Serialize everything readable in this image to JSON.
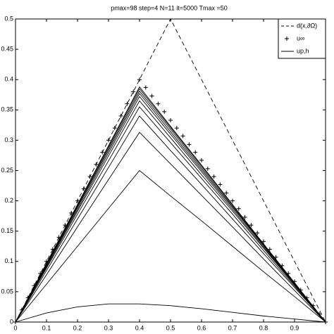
{
  "chart_data": {
    "type": "line",
    "title": "pmax=98 step=4  N=11  it=5000  Tmax =50",
    "xlim": [
      0,
      1
    ],
    "ylim": [
      0,
      0.5
    ],
    "xticks": [
      0,
      0.1,
      0.2,
      0.3,
      0.4,
      0.5,
      0.6,
      0.7,
      0.8,
      0.9
    ],
    "yticks": [
      0,
      0.05,
      0.1,
      0.15,
      0.2,
      0.25,
      0.3,
      0.35,
      0.4,
      0.45,
      0.5
    ],
    "legend": "upper right",
    "series": [
      {
        "name": "d(x,∂Ω)",
        "style": "dashed",
        "color": "#000000",
        "x": [
          0,
          0.5,
          1
        ],
        "values": [
          0,
          0.5,
          0
        ]
      },
      {
        "name": "u∞",
        "style": "plus",
        "color": "#000000",
        "x": [
          0,
          0.02,
          0.04,
          0.06,
          0.08,
          0.1,
          0.12,
          0.14,
          0.16,
          0.18,
          0.2,
          0.22,
          0.24,
          0.26,
          0.28,
          0.3,
          0.32,
          0.34,
          0.36,
          0.38,
          0.4,
          0.42,
          0.44,
          0.46,
          0.48,
          0.5,
          0.52,
          0.54,
          0.56,
          0.58,
          0.6,
          0.62,
          0.64,
          0.66,
          0.68,
          0.7,
          0.72,
          0.74,
          0.76,
          0.78,
          0.8,
          0.82,
          0.84,
          0.86,
          0.88,
          0.9,
          0.92,
          0.94,
          0.96,
          0.98,
          1
        ],
        "values": [
          0,
          0.02,
          0.04,
          0.06,
          0.08,
          0.1,
          0.12,
          0.14,
          0.16,
          0.18,
          0.2,
          0.22,
          0.24,
          0.26,
          0.28,
          0.3,
          0.32,
          0.34,
          0.36,
          0.38,
          0.4,
          0.387,
          0.373,
          0.36,
          0.347,
          0.333,
          0.32,
          0.307,
          0.293,
          0.28,
          0.267,
          0.253,
          0.24,
          0.227,
          0.213,
          0.2,
          0.187,
          0.173,
          0.16,
          0.147,
          0.133,
          0.12,
          0.107,
          0.093,
          0.08,
          0.067,
          0.053,
          0.04,
          0.027,
          0.013,
          0
        ]
      },
      {
        "name": "up,h",
        "style": "solid",
        "color": "#000000",
        "x": [
          0,
          0.1,
          0.2,
          0.3,
          0.4,
          0.5,
          0.6,
          0.7,
          0.8,
          0.9,
          1
        ],
        "curves": [
          [
            0,
            0.015,
            0.025,
            0.03,
            0.03,
            0.027,
            0.022,
            0.016,
            0.01,
            0.005,
            0
          ],
          [
            0,
            0.0625,
            0.125,
            0.1875,
            0.25,
            0.208,
            0.167,
            0.125,
            0.083,
            0.042,
            0
          ],
          [
            0,
            0.078,
            0.157,
            0.235,
            0.313,
            0.261,
            0.209,
            0.157,
            0.104,
            0.052,
            0
          ],
          [
            0,
            0.085,
            0.17,
            0.255,
            0.34,
            0.283,
            0.227,
            0.17,
            0.113,
            0.057,
            0
          ],
          [
            0,
            0.089,
            0.178,
            0.266,
            0.355,
            0.296,
            0.237,
            0.178,
            0.118,
            0.059,
            0
          ],
          [
            0,
            0.091,
            0.183,
            0.274,
            0.365,
            0.304,
            0.243,
            0.183,
            0.122,
            0.061,
            0
          ],
          [
            0,
            0.093,
            0.186,
            0.279,
            0.372,
            0.31,
            0.248,
            0.186,
            0.124,
            0.062,
            0
          ],
          [
            0,
            0.094,
            0.189,
            0.283,
            0.377,
            0.314,
            0.251,
            0.189,
            0.126,
            0.063,
            0
          ],
          [
            0,
            0.095,
            0.191,
            0.286,
            0.381,
            0.318,
            0.254,
            0.191,
            0.127,
            0.064,
            0
          ],
          [
            0,
            0.096,
            0.193,
            0.289,
            0.385,
            0.321,
            0.257,
            0.193,
            0.128,
            0.064,
            0
          ],
          [
            0,
            0.097,
            0.194,
            0.291,
            0.388,
            0.323,
            0.259,
            0.194,
            0.129,
            0.065,
            0
          ]
        ]
      }
    ]
  }
}
